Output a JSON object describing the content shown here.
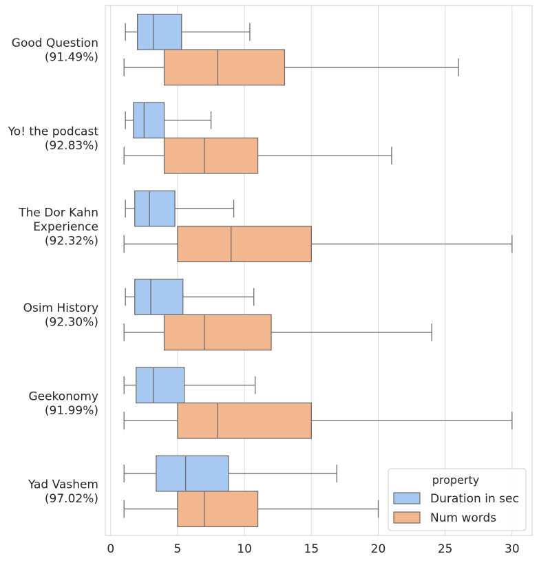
{
  "chart_data": {
    "type": "boxplot",
    "orientation": "horizontal",
    "xlim": [
      -0.4,
      31.5
    ],
    "xticks": [
      0,
      5,
      10,
      15,
      20,
      25,
      30
    ],
    "xtick_labels": [
      "0",
      "5",
      "10",
      "15",
      "20",
      "25",
      "30"
    ],
    "grid": "vertical",
    "legend": {
      "title": "property",
      "placement": "bottom-right",
      "entries": [
        {
          "label": "Duration in sec",
          "color": "#a7c8f0"
        },
        {
          "label": "Num words",
          "color": "#f2b78e"
        }
      ]
    },
    "categories": [
      {
        "lines": [
          "Good Question",
          "(91.49%)"
        ]
      },
      {
        "lines": [
          "Yo! the podcast",
          "(92.83%)"
        ]
      },
      {
        "lines": [
          "The Dor Kahn",
          "Experience",
          "(92.32%)"
        ]
      },
      {
        "lines": [
          "Osim History",
          "(92.30%)"
        ]
      },
      {
        "lines": [
          "Geekonomy",
          "(91.99%)"
        ]
      },
      {
        "lines": [
          "Yad Vashem",
          "(97.02%)"
        ]
      }
    ],
    "series": [
      {
        "name": "Duration in sec",
        "color": "#a7c8f0",
        "boxes": [
          {
            "whislo": 1.1,
            "q1": 2.0,
            "med": 3.2,
            "q3": 5.3,
            "whishi": 10.4
          },
          {
            "whislo": 1.1,
            "q1": 1.7,
            "med": 2.5,
            "q3": 4.0,
            "whishi": 7.5
          },
          {
            "whislo": 1.1,
            "q1": 1.8,
            "med": 2.9,
            "q3": 4.8,
            "whishi": 9.2
          },
          {
            "whislo": 1.1,
            "q1": 1.8,
            "med": 3.0,
            "q3": 5.4,
            "whishi": 10.7
          },
          {
            "whislo": 1.0,
            "q1": 1.9,
            "med": 3.2,
            "q3": 5.5,
            "whishi": 10.8
          },
          {
            "whislo": 1.0,
            "q1": 3.4,
            "med": 5.6,
            "q3": 8.8,
            "whishi": 16.9
          }
        ]
      },
      {
        "name": "Num words",
        "color": "#f2b78e",
        "boxes": [
          {
            "whislo": 1,
            "q1": 4,
            "med": 8,
            "q3": 13,
            "whishi": 26
          },
          {
            "whislo": 1,
            "q1": 4,
            "med": 7,
            "q3": 11,
            "whishi": 21
          },
          {
            "whislo": 1,
            "q1": 5,
            "med": 9,
            "q3": 15,
            "whishi": 30
          },
          {
            "whislo": 1,
            "q1": 4,
            "med": 7,
            "q3": 12,
            "whishi": 24
          },
          {
            "whislo": 1,
            "q1": 5,
            "med": 8,
            "q3": 15,
            "whishi": 30
          },
          {
            "whislo": 1,
            "q1": 5,
            "med": 7,
            "q3": 11,
            "whishi": 20
          }
        ]
      }
    ]
  }
}
